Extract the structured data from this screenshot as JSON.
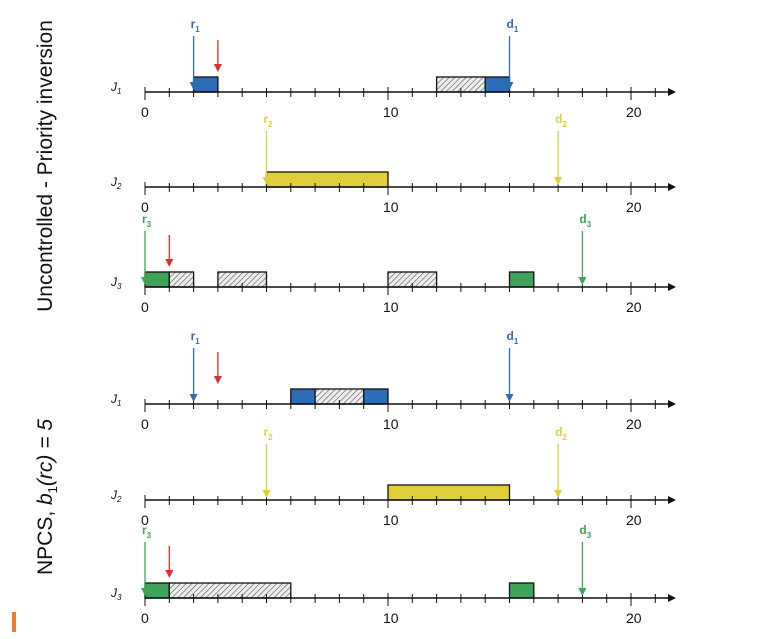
{
  "colors": {
    "blue": "#2e6db5",
    "yellow": "#e0cf3a",
    "green": "#3fa35a",
    "red": "#d9302a",
    "axis": "#111111",
    "hatch_bg": "#eeeeee",
    "hatch_line": "#555555",
    "accent": "#f07d2f"
  },
  "sections": [
    {
      "title": "Uncontrolled - Priority inversion",
      "rows": [
        {
          "job": "J",
          "job_sub": "1",
          "xmax": 21,
          "tick_labels": [
            "0",
            "10",
            "20"
          ],
          "blocks": [
            {
              "start": 2,
              "end": 3,
              "fill": "blue"
            },
            {
              "start": 12,
              "end": 14,
              "fill": "hatch"
            },
            {
              "start": 14,
              "end": 15,
              "fill": "blue"
            }
          ],
          "markers": [
            {
              "t": 2,
              "label": "r",
              "sub": "1",
              "color": "blue"
            },
            {
              "t": 3,
              "label": "",
              "sub": "",
              "color": "red"
            },
            {
              "t": 15,
              "label": "d",
              "sub": "1",
              "color": "blue"
            }
          ]
        },
        {
          "job": "J",
          "job_sub": "2",
          "xmax": 21,
          "tick_labels": [
            "0",
            "10",
            "20"
          ],
          "blocks": [
            {
              "start": 5,
              "end": 10,
              "fill": "yellow"
            }
          ],
          "markers": [
            {
              "t": 5,
              "label": "r",
              "sub": "2",
              "color": "yellow"
            },
            {
              "t": 17,
              "label": "d",
              "sub": "2",
              "color": "yellow"
            }
          ]
        },
        {
          "job": "J",
          "job_sub": "3",
          "xmax": 21,
          "tick_labels": [
            "0",
            "10",
            "20"
          ],
          "blocks": [
            {
              "start": 0,
              "end": 1,
              "fill": "green"
            },
            {
              "start": 1,
              "end": 2,
              "fill": "hatch"
            },
            {
              "start": 3,
              "end": 5,
              "fill": "hatch"
            },
            {
              "start": 10,
              "end": 12,
              "fill": "hatch"
            },
            {
              "start": 15,
              "end": 16,
              "fill": "green"
            }
          ],
          "markers": [
            {
              "t": 0,
              "label": "r",
              "sub": "3",
              "color": "green"
            },
            {
              "t": 1,
              "label": "",
              "sub": "",
              "color": "red"
            },
            {
              "t": 18,
              "label": "d",
              "sub": "3",
              "color": "green"
            }
          ]
        }
      ]
    },
    {
      "title": "NPCS, b1(rc) = 5",
      "title_parts": {
        "prefix": "NPCS, ",
        "b": "b",
        "b_sub": "1",
        "rest": "(rc) = 5"
      },
      "rows": [
        {
          "job": "J",
          "job_sub": "1",
          "xmax": 21,
          "tick_labels": [
            "0",
            "10",
            "20"
          ],
          "blocks": [
            {
              "start": 6,
              "end": 7,
              "fill": "blue"
            },
            {
              "start": 7,
              "end": 9,
              "fill": "hatch"
            },
            {
              "start": 9,
              "end": 10,
              "fill": "blue"
            }
          ],
          "markers": [
            {
              "t": 2,
              "label": "r",
              "sub": "1",
              "color": "blue"
            },
            {
              "t": 3,
              "label": "",
              "sub": "",
              "color": "red"
            },
            {
              "t": 15,
              "label": "d",
              "sub": "1",
              "color": "blue"
            }
          ]
        },
        {
          "job": "J",
          "job_sub": "2",
          "xmax": 21,
          "tick_labels": [
            "0",
            "10",
            "20"
          ],
          "blocks": [
            {
              "start": 10,
              "end": 15,
              "fill": "yellow"
            }
          ],
          "markers": [
            {
              "t": 5,
              "label": "r",
              "sub": "2",
              "color": "yellow"
            },
            {
              "t": 17,
              "label": "d",
              "sub": "2",
              "color": "yellow"
            }
          ]
        },
        {
          "job": "J",
          "job_sub": "3",
          "xmax": 21,
          "tick_labels": [
            "0",
            "10",
            "20"
          ],
          "blocks": [
            {
              "start": 0,
              "end": 1,
              "fill": "green"
            },
            {
              "start": 1,
              "end": 6,
              "fill": "hatch"
            },
            {
              "start": 15,
              "end": 16,
              "fill": "green"
            }
          ],
          "markers": [
            {
              "t": 0,
              "label": "r",
              "sub": "3",
              "color": "green"
            },
            {
              "t": 1,
              "label": "",
              "sub": "",
              "color": "red"
            },
            {
              "t": 18,
              "label": "d",
              "sub": "3",
              "color": "green"
            }
          ]
        }
      ]
    }
  ]
}
